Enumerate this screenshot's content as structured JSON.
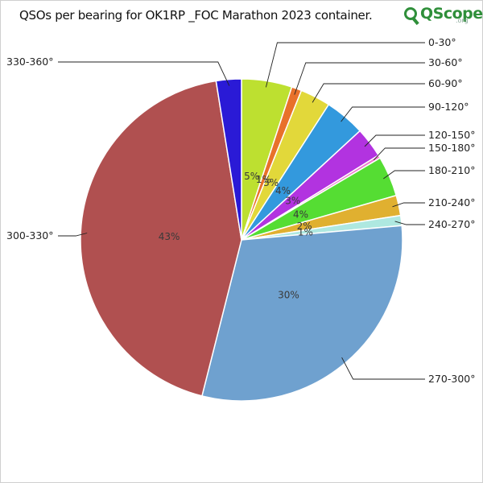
{
  "title": "QSOs per bearing for OK1RP _FOC Marathon 2023 container.",
  "logo": {
    "main": "QScope",
    "sub": ".org"
  },
  "chart_data": {
    "type": "pie",
    "categories": [
      "0-30°",
      "30-60°",
      "60-90°",
      "90-120°",
      "120-150°",
      "150-180°",
      "180-210°",
      "210-240°",
      "240-270°",
      "270-300°",
      "300-330°",
      "330-360°"
    ],
    "values": [
      5,
      1,
      3,
      4,
      3,
      0.3,
      4,
      2,
      1,
      30,
      43,
      2.5
    ],
    "percent_labels": [
      "5%",
      "1%",
      "3%",
      "4%",
      "3%",
      "",
      "4%",
      "2%",
      "1%",
      "30%",
      "43%",
      ""
    ],
    "colors": [
      "#bde030",
      "#e8712a",
      "#e2d83a",
      "#3399dd",
      "#b233e0",
      "#ee77cc",
      "#55dd33",
      "#e0b030",
      "#aee8e0",
      "#6fa1cf",
      "#b05050",
      "#2a1ad6"
    ]
  }
}
